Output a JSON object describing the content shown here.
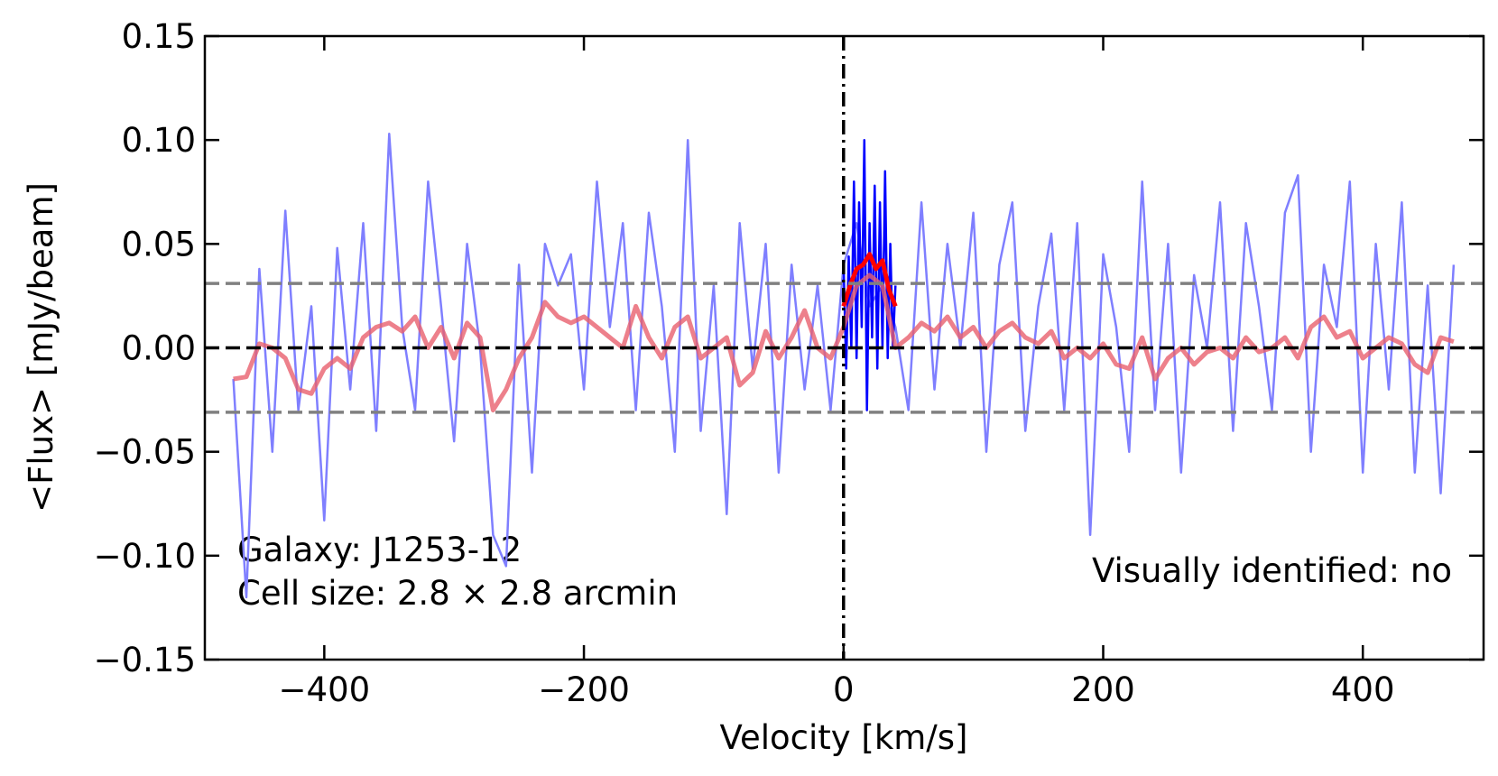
{
  "chart_data": {
    "type": "line",
    "xlabel": "Velocity [km/s]",
    "ylabel": "<Flux> [mJy/beam]",
    "xlim": [
      -492,
      493
    ],
    "ylim": [
      -0.15,
      0.15
    ],
    "xticks": [
      {
        "value": -400,
        "label": "−400"
      },
      {
        "value": -200,
        "label": "−200"
      },
      0,
      200,
      400
    ],
    "yticks": [
      {
        "value": -0.15,
        "label": "−0.15"
      },
      {
        "value": -0.1,
        "label": "−0.10"
      },
      {
        "value": -0.05,
        "label": "−0.05"
      },
      {
        "value": 0,
        "label": "0.00"
      },
      {
        "value": 0.05,
        "label": "0.05"
      },
      {
        "value": 0.1,
        "label": "0.10"
      },
      0.15
    ],
    "annotations": [
      "Galaxy: J1253-12",
      "Cell size: 2.8 × 2.8 arcmin",
      "Visually identified: no"
    ],
    "hlines": [
      {
        "value": 0,
        "color": "#000000",
        "style": "dashed"
      },
      {
        "value": 0.031,
        "color": "#808080",
        "style": "dashed"
      },
      {
        "value": -0.031,
        "color": "#808080",
        "style": "dashed"
      }
    ],
    "vlines": [
      {
        "value": 0,
        "color": "#000000",
        "style": "dashdot"
      }
    ],
    "series": [
      {
        "color": "#7f7fff",
        "width": 2.5,
        "opacity": 1,
        "x": [
          -470,
          -460,
          -450,
          -440,
          -430,
          -420,
          -410,
          -400,
          -390,
          -380,
          -370,
          -360,
          -350,
          -340,
          -330,
          -320,
          -310,
          -300,
          -290,
          -280,
          -270,
          -260,
          -250,
          -240,
          -230,
          -220,
          -210,
          -200,
          -190,
          -180,
          -170,
          -160,
          -150,
          -140,
          -130,
          -120,
          -110,
          -100,
          -90,
          -80,
          -70,
          -60,
          -50,
          -40,
          -30,
          -20,
          -10,
          0,
          10,
          20,
          30,
          40,
          50,
          60,
          70,
          80,
          90,
          100,
          110,
          120,
          130,
          140,
          150,
          160,
          170,
          180,
          190,
          200,
          210,
          220,
          230,
          240,
          250,
          260,
          270,
          280,
          290,
          300,
          310,
          320,
          330,
          340,
          350,
          360,
          370,
          380,
          390,
          400,
          410,
          420,
          430,
          440,
          450,
          460,
          470
        ],
        "values": [
          -0.015,
          -0.12,
          0.038,
          -0.05,
          0.066,
          -0.03,
          0.02,
          -0.083,
          0.048,
          -0.02,
          0.06,
          -0.04,
          0.103,
          0.01,
          -0.03,
          0.08,
          0.02,
          -0.045,
          0.05,
          0.0,
          -0.09,
          -0.105,
          0.04,
          -0.06,
          0.05,
          0.03,
          0.045,
          -0.02,
          0.08,
          0.01,
          0.06,
          -0.03,
          0.065,
          0.02,
          -0.05,
          0.1,
          -0.04,
          0.03,
          -0.08,
          0.06,
          -0.01,
          0.05,
          -0.06,
          0.04,
          -0.02,
          0.03,
          -0.03,
          0.04,
          0.06,
          0.02,
          0.03,
          0.01,
          -0.03,
          0.07,
          -0.02,
          0.05,
          0.0,
          0.065,
          -0.05,
          0.04,
          0.07,
          -0.04,
          0.02,
          0.055,
          -0.03,
          0.06,
          -0.09,
          0.045,
          0.01,
          -0.05,
          0.08,
          -0.03,
          0.05,
          -0.06,
          0.035,
          0.0,
          0.07,
          -0.04,
          0.06,
          0.02,
          -0.03,
          0.065,
          0.083,
          -0.05,
          0.04,
          0.01,
          0.08,
          -0.06,
          0.05,
          -0.02,
          0.07,
          -0.06,
          0.03,
          -0.07,
          0.04
        ]
      },
      {
        "color": "#0000ff",
        "width": 2.5,
        "opacity": 1,
        "x": [
          0,
          2,
          4,
          6,
          8,
          10,
          12,
          14,
          16,
          18,
          20,
          22,
          24,
          26,
          28,
          30,
          32,
          34,
          36,
          38,
          40
        ],
        "values": [
          0.04,
          -0.01,
          0.044,
          0.0,
          0.08,
          -0.005,
          0.07,
          0.01,
          0.1,
          -0.03,
          0.06,
          0.005,
          0.078,
          -0.01,
          0.07,
          0.0,
          0.085,
          -0.005,
          0.05,
          0.0,
          0.03
        ]
      },
      {
        "color": "#e8606e",
        "width": 5,
        "opacity": 0.8,
        "x": [
          -470,
          -460,
          -450,
          -440,
          -430,
          -420,
          -410,
          -400,
          -390,
          -380,
          -370,
          -360,
          -350,
          -340,
          -330,
          -320,
          -310,
          -300,
          -290,
          -280,
          -270,
          -260,
          -250,
          -240,
          -230,
          -220,
          -210,
          -200,
          -190,
          -180,
          -170,
          -160,
          -150,
          -140,
          -130,
          -120,
          -110,
          -100,
          -90,
          -80,
          -70,
          -60,
          -50,
          -40,
          -30,
          -20,
          -10,
          0,
          10,
          20,
          30,
          40,
          50,
          60,
          70,
          80,
          90,
          100,
          110,
          120,
          130,
          140,
          150,
          160,
          170,
          180,
          190,
          200,
          210,
          220,
          230,
          240,
          250,
          260,
          270,
          280,
          290,
          300,
          310,
          320,
          330,
          340,
          350,
          360,
          370,
          380,
          390,
          400,
          410,
          420,
          430,
          440,
          450,
          460,
          470
        ],
        "values": [
          -0.015,
          -0.014,
          0.002,
          0.0,
          -0.005,
          -0.02,
          -0.022,
          -0.01,
          -0.005,
          -0.01,
          0.005,
          0.01,
          0.012,
          0.008,
          0.015,
          0.0,
          0.01,
          -0.005,
          0.012,
          0.005,
          -0.03,
          -0.02,
          -0.005,
          0.005,
          0.022,
          0.015,
          0.012,
          0.015,
          0.01,
          0.005,
          0.0,
          0.02,
          0.005,
          -0.005,
          0.01,
          0.015,
          -0.005,
          0.0,
          0.005,
          -0.018,
          -0.012,
          0.008,
          -0.005,
          0.005,
          0.018,
          0.0,
          -0.005,
          0.01,
          0.03,
          0.035,
          0.03,
          0.0,
          0.005,
          0.012,
          0.008,
          0.015,
          0.005,
          0.01,
          0.0,
          0.008,
          0.012,
          0.005,
          0.002,
          0.008,
          -0.005,
          0.0,
          -0.005,
          0.002,
          -0.008,
          -0.01,
          0.005,
          -0.015,
          -0.005,
          0.0,
          -0.008,
          -0.002,
          0.0,
          -0.005,
          0.005,
          -0.002,
          0.0,
          0.005,
          -0.005,
          0.01,
          0.015,
          0.005,
          0.008,
          -0.005,
          0.0,
          0.005,
          0.002,
          -0.008,
          -0.012,
          0.005,
          0.003
        ]
      },
      {
        "color": "#ff0000",
        "width": 5,
        "opacity": 1,
        "x": [
          0,
          5,
          10,
          15,
          20,
          25,
          30,
          35,
          40
        ],
        "values": [
          0.02,
          0.03,
          0.038,
          0.04,
          0.045,
          0.038,
          0.042,
          0.028,
          0.02
        ]
      }
    ]
  }
}
